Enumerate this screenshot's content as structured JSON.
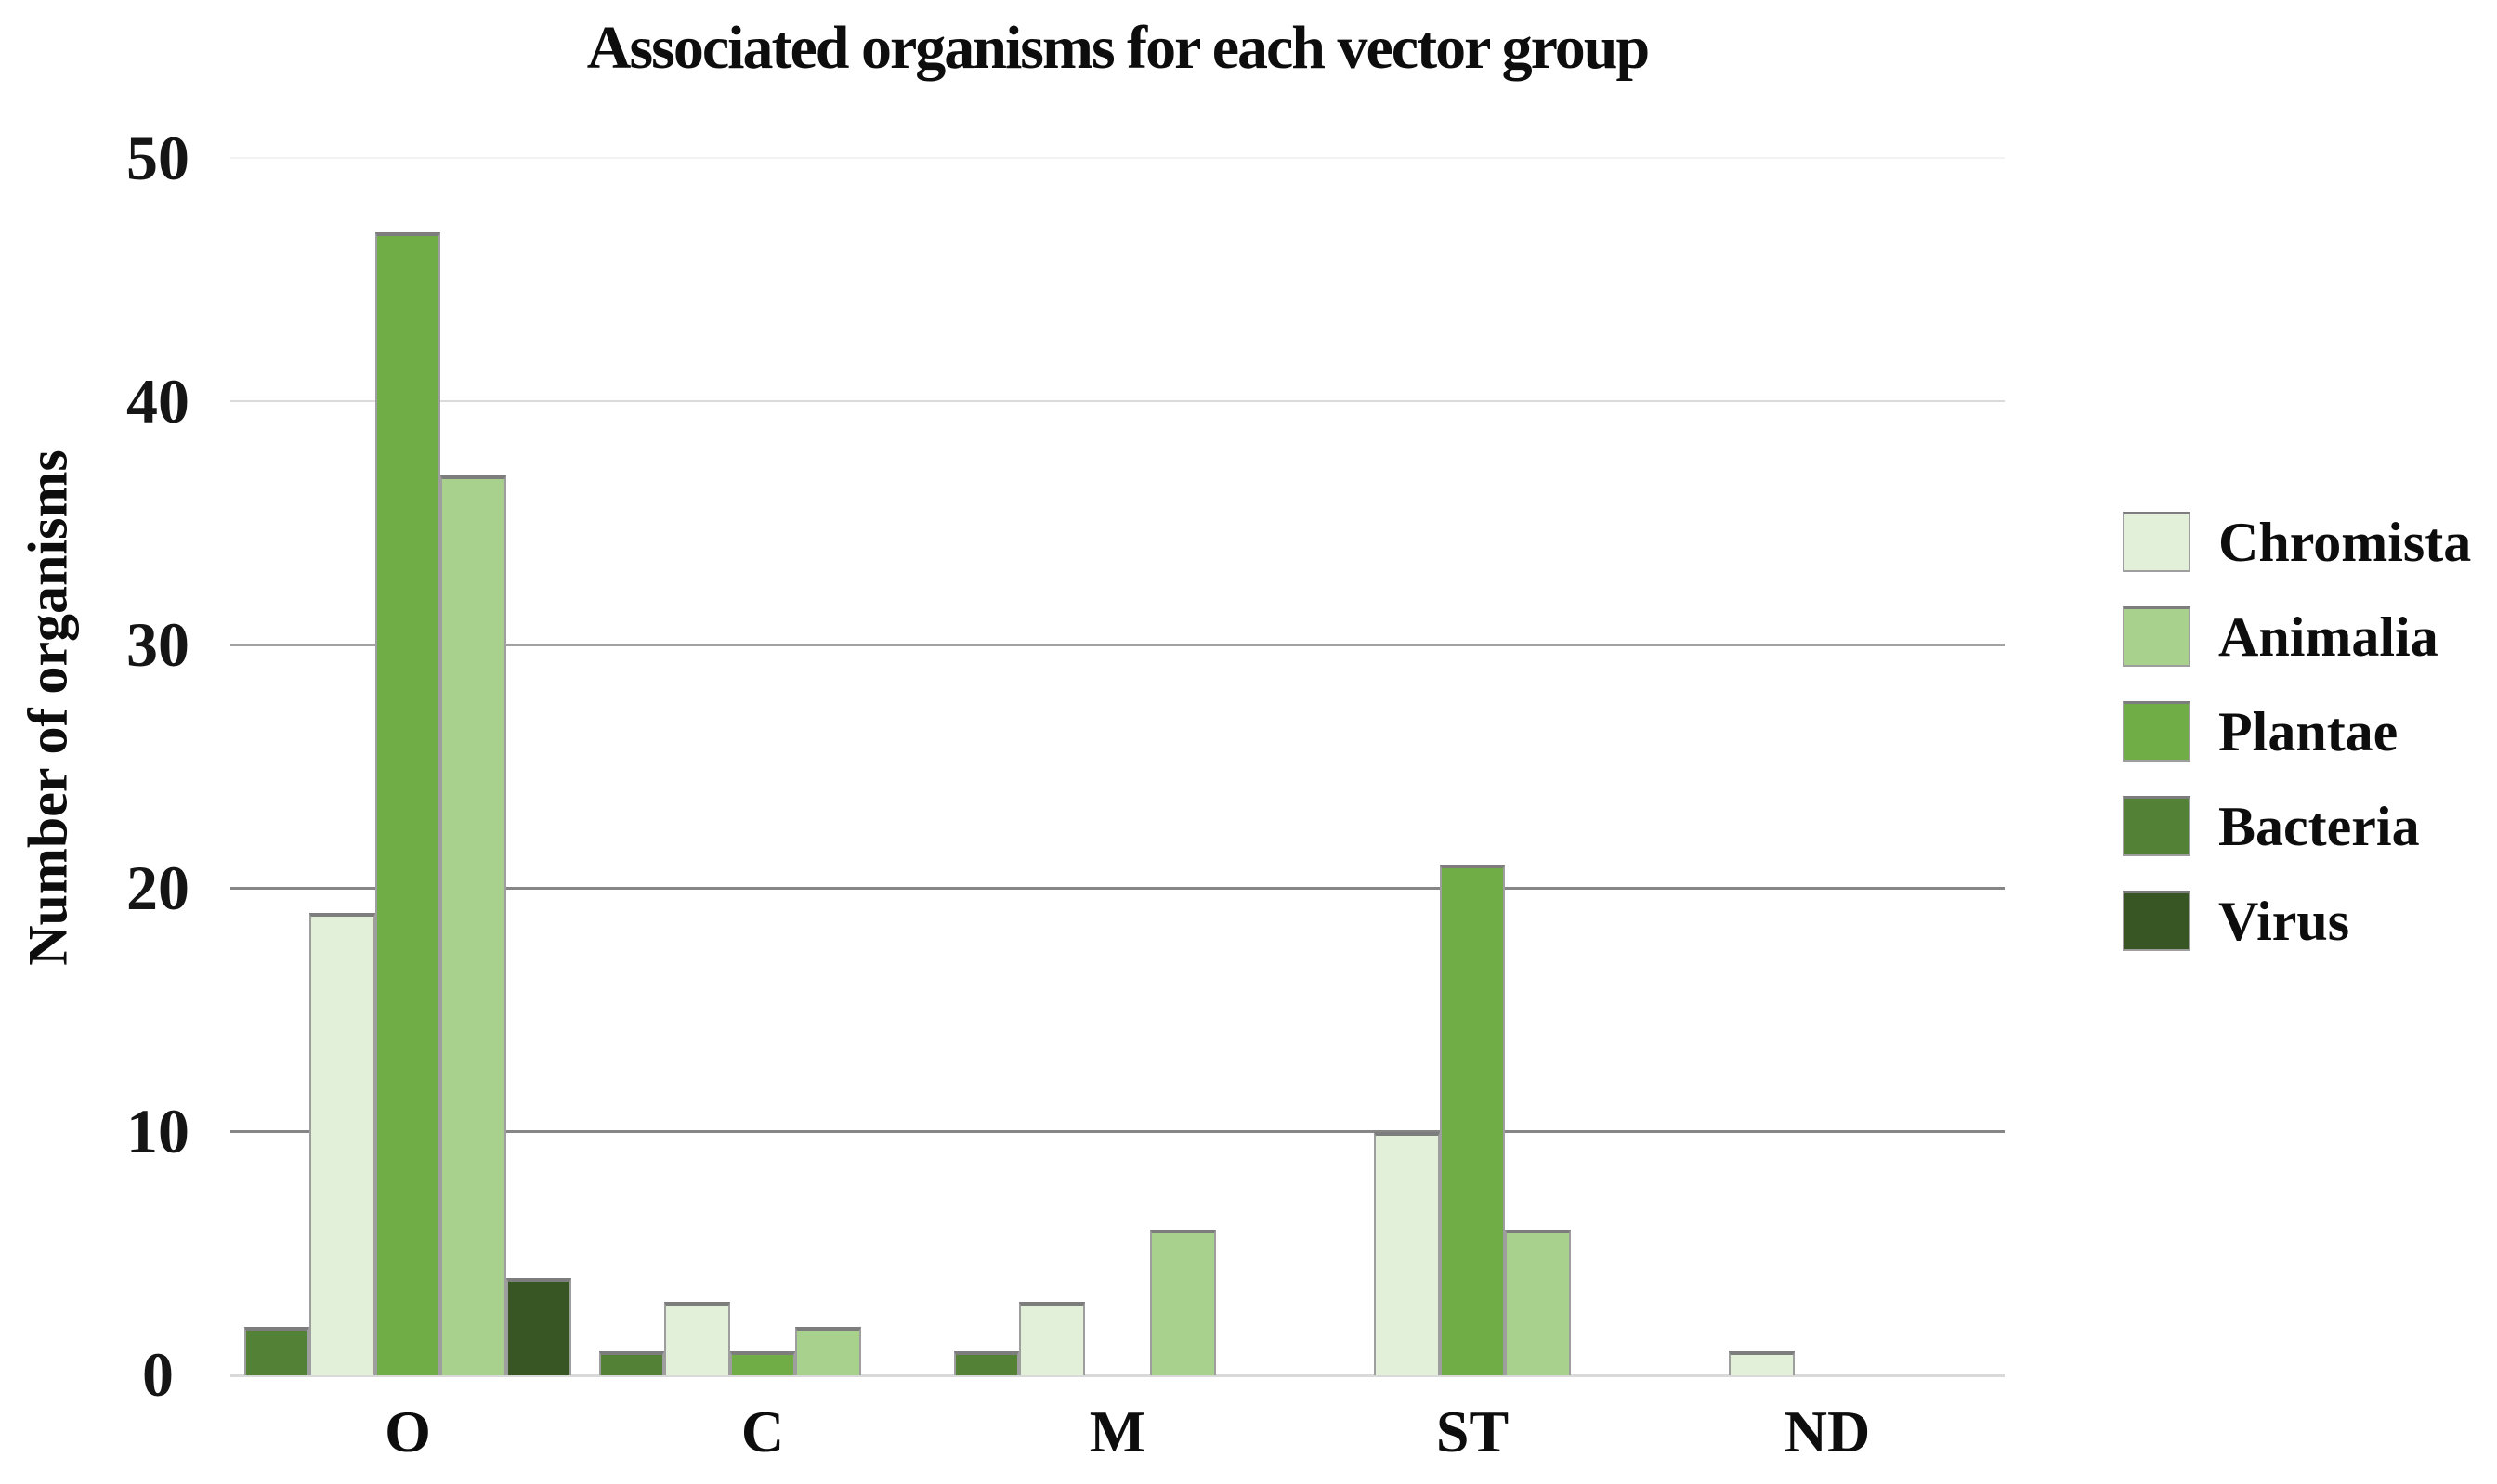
{
  "figure": {
    "background": "#ffffff",
    "text_color": "#111111"
  },
  "chart_data": {
    "type": "bar",
    "title": "Associated organisms for each vector group",
    "xlabel": "",
    "ylabel": "Number of organisms",
    "categories": [
      "O",
      "C",
      "M",
      "ST",
      "ND"
    ],
    "series": [
      {
        "name": "Chromista",
        "color": "#E2EFD9",
        "values": [
          19,
          3,
          3,
          10,
          1
        ]
      },
      {
        "name": "Animalia",
        "color": "#A9D18E",
        "values": [
          37,
          2,
          6,
          6,
          0
        ]
      },
      {
        "name": "Plantae",
        "color": "#70AD47",
        "values": [
          47,
          1,
          0,
          21,
          0
        ]
      },
      {
        "name": "Bacteria",
        "color": "#538135",
        "values": [
          2,
          1,
          1,
          0,
          0
        ]
      },
      {
        "name": "Virus",
        "color": "#375623",
        "values": [
          4,
          0,
          0,
          0,
          0
        ]
      }
    ],
    "slot_order": [
      "Bacteria",
      "Chromista",
      "Plantae",
      "Animalia",
      "Virus"
    ],
    "ylim": [
      0,
      50
    ],
    "yticks": [
      0,
      10,
      20,
      30,
      40,
      50
    ],
    "grid": true,
    "legend_position": "right",
    "legend_items": [
      "Chromista",
      "Animalia",
      "Plantae",
      "Bacteria",
      "Virus"
    ],
    "gridline_colors": {
      "50": "#f3f3f3",
      "40": "#dadada",
      "30": "#a2a2a2",
      "20": "#868686",
      "10": "#868686",
      "axis": "#d9d9d9"
    },
    "bar_border_color": "#9e9e9e",
    "bar_border_top_color": "#7d7d7d"
  }
}
